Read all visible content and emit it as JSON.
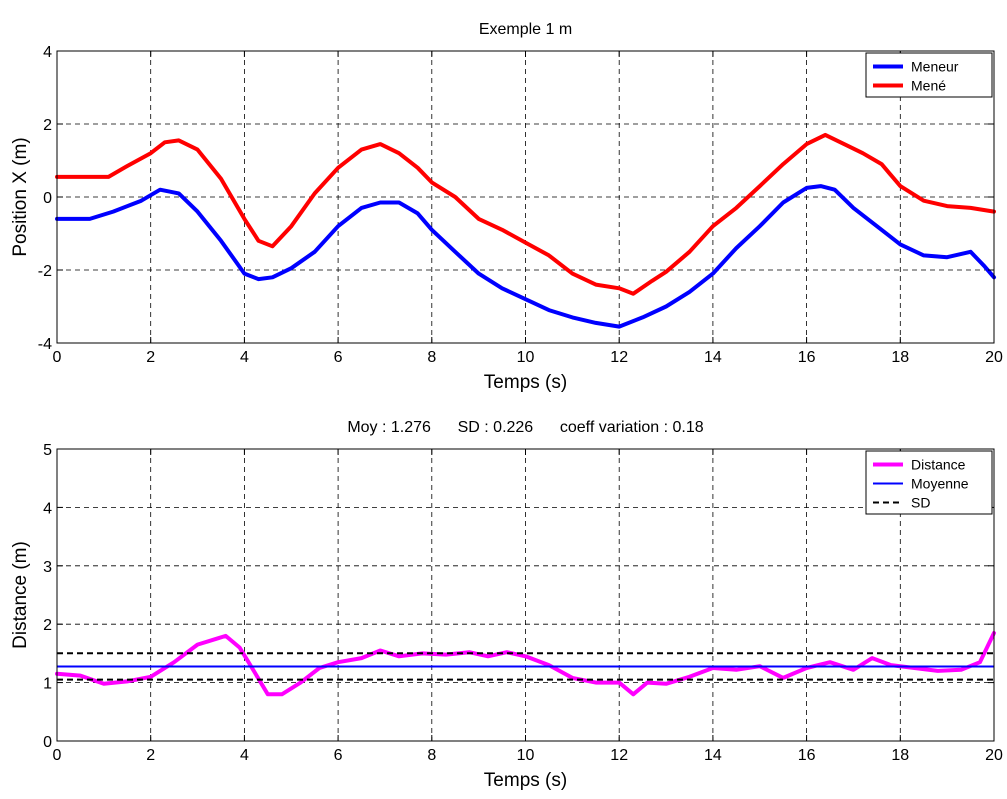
{
  "chart_data": [
    {
      "type": "line",
      "title": "Exemple 1 m",
      "xlabel": "Temps (s)",
      "ylabel": "Position X (m)",
      "xlim": [
        0,
        20
      ],
      "ylim": [
        -4,
        4
      ],
      "xticks": [
        0,
        2,
        4,
        6,
        8,
        10,
        12,
        14,
        16,
        18,
        20
      ],
      "yticks": [
        -4,
        -2,
        0,
        2,
        4
      ],
      "grid": true,
      "legend_position": "top-right",
      "series": [
        {
          "name": "Meneur",
          "color": "#0000ff",
          "x": [
            0,
            0.7,
            1.2,
            1.8,
            2.2,
            2.6,
            3.0,
            3.5,
            4.0,
            4.3,
            4.6,
            5.0,
            5.5,
            6.0,
            6.5,
            6.9,
            7.3,
            7.7,
            8.0,
            8.5,
            9.0,
            9.5,
            10.0,
            10.5,
            11.0,
            11.5,
            12.0,
            12.5,
            13.0,
            13.5,
            14.0,
            14.5,
            15.0,
            15.5,
            16.0,
            16.3,
            16.6,
            17.0,
            17.5,
            18.0,
            18.5,
            19.0,
            19.5,
            19.8,
            20.0
          ],
          "y": [
            -0.6,
            -0.6,
            -0.4,
            -0.1,
            0.2,
            0.1,
            -0.4,
            -1.2,
            -2.1,
            -2.25,
            -2.2,
            -1.95,
            -1.5,
            -0.8,
            -0.3,
            -0.15,
            -0.15,
            -0.45,
            -0.9,
            -1.5,
            -2.1,
            -2.5,
            -2.8,
            -3.1,
            -3.3,
            -3.45,
            -3.55,
            -3.3,
            -3.0,
            -2.6,
            -2.1,
            -1.4,
            -0.8,
            -0.15,
            0.25,
            0.3,
            0.2,
            -0.3,
            -0.8,
            -1.3,
            -1.6,
            -1.65,
            -1.5,
            -1.9,
            -2.2
          ]
        },
        {
          "name": "Mené",
          "color": "#ff0000",
          "x": [
            0,
            0.7,
            1.1,
            1.5,
            2.0,
            2.3,
            2.6,
            3.0,
            3.5,
            4.0,
            4.3,
            4.6,
            5.0,
            5.5,
            6.0,
            6.5,
            6.9,
            7.3,
            7.7,
            8.0,
            8.5,
            9.0,
            9.5,
            10.0,
            10.5,
            11.0,
            11.5,
            12.0,
            12.3,
            12.7,
            13.0,
            13.5,
            14.0,
            14.5,
            15.0,
            15.5,
            16.0,
            16.4,
            16.8,
            17.2,
            17.6,
            18.0,
            18.5,
            19.0,
            19.5,
            20.0
          ],
          "y": [
            0.55,
            0.55,
            0.55,
            0.85,
            1.2,
            1.5,
            1.55,
            1.3,
            0.5,
            -0.6,
            -1.2,
            -1.35,
            -0.8,
            0.1,
            0.8,
            1.3,
            1.45,
            1.2,
            0.8,
            0.4,
            0.0,
            -0.6,
            -0.9,
            -1.25,
            -1.6,
            -2.1,
            -2.4,
            -2.5,
            -2.65,
            -2.3,
            -2.05,
            -1.5,
            -0.8,
            -0.3,
            0.3,
            0.9,
            1.45,
            1.7,
            1.45,
            1.2,
            0.9,
            0.3,
            -0.1,
            -0.25,
            -0.3,
            -0.4
          ]
        }
      ]
    },
    {
      "type": "line",
      "title": "Moy : 1.276      SD : 0.226      coeff variation : 0.18",
      "xlabel": "Temps (s)",
      "ylabel": "Distance (m)",
      "xlim": [
        0,
        20
      ],
      "ylim": [
        0,
        5
      ],
      "xticks": [
        0,
        2,
        4,
        6,
        8,
        10,
        12,
        14,
        16,
        18,
        20
      ],
      "yticks": [
        0,
        1,
        2,
        3,
        4,
        5
      ],
      "grid": true,
      "legend_position": "top-right",
      "series": [
        {
          "name": "Distance",
          "color": "#ff00ff",
          "x": [
            0,
            0.5,
            1.0,
            1.5,
            2.0,
            2.5,
            3.0,
            3.4,
            3.6,
            3.9,
            4.2,
            4.5,
            4.8,
            5.2,
            5.6,
            6.0,
            6.5,
            6.9,
            7.3,
            7.8,
            8.3,
            8.8,
            9.2,
            9.6,
            10.0,
            10.5,
            11.0,
            11.5,
            12.0,
            12.3,
            12.6,
            13.0,
            13.5,
            14.0,
            14.5,
            15.0,
            15.5,
            16.0,
            16.5,
            17.0,
            17.4,
            17.8,
            18.3,
            18.8,
            19.3,
            19.7,
            20.0
          ],
          "y": [
            1.15,
            1.12,
            0.98,
            1.02,
            1.1,
            1.35,
            1.65,
            1.75,
            1.8,
            1.6,
            1.2,
            0.8,
            0.8,
            1.0,
            1.25,
            1.35,
            1.42,
            1.55,
            1.45,
            1.5,
            1.48,
            1.52,
            1.45,
            1.52,
            1.45,
            1.3,
            1.08,
            1.0,
            1.0,
            0.8,
            1.0,
            0.98,
            1.1,
            1.25,
            1.22,
            1.28,
            1.08,
            1.25,
            1.35,
            1.22,
            1.42,
            1.3,
            1.25,
            1.2,
            1.22,
            1.35,
            1.85
          ]
        },
        {
          "name": "Moyenne",
          "color": "#0000ff",
          "value": 1.276
        },
        {
          "name": "SD",
          "color": "#000000",
          "values": [
            1.05,
            1.502
          ]
        }
      ]
    }
  ]
}
